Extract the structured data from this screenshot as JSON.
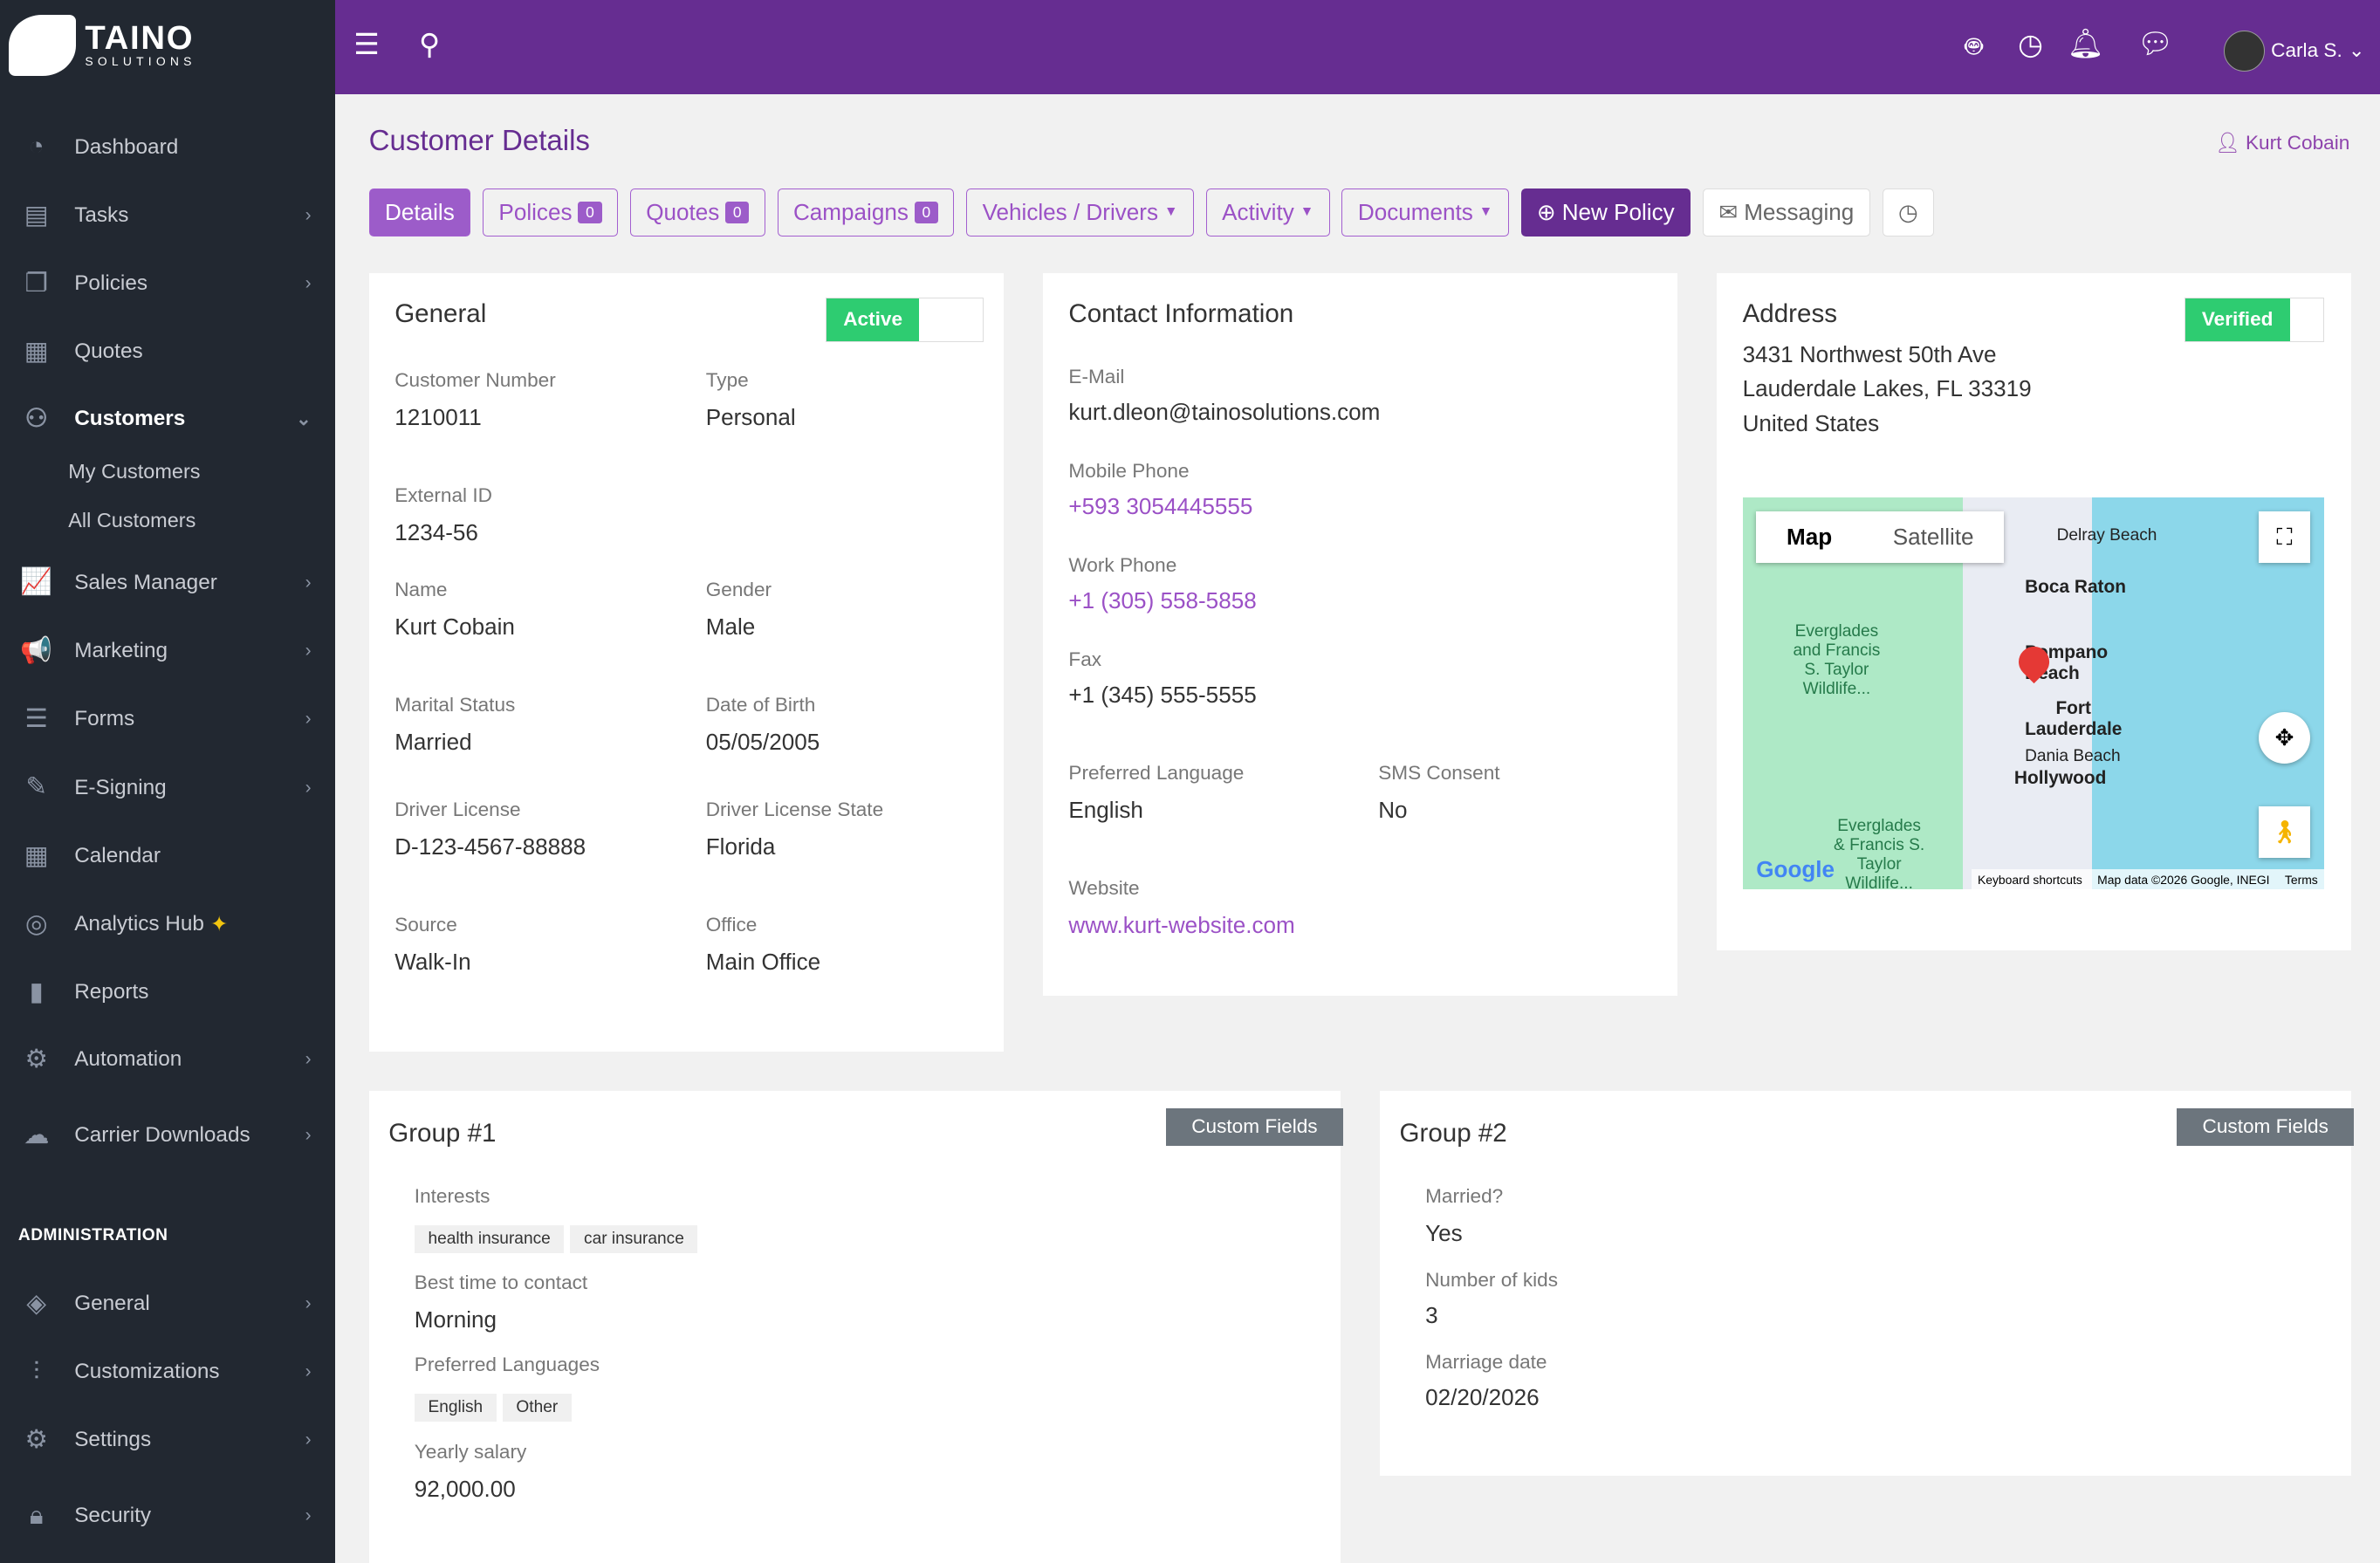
{
  "logo": {
    "name": "TAINO",
    "sub": "SOLUTIONS"
  },
  "sidebar": {
    "items": [
      {
        "label": "Dashboard",
        "icon": "dashboard-icon"
      },
      {
        "label": "Tasks",
        "icon": "clipboard-icon"
      },
      {
        "label": "Policies",
        "icon": "files-icon"
      },
      {
        "label": "Quotes",
        "icon": "calculator-icon"
      },
      {
        "label": "Customers",
        "icon": "users-icon"
      },
      {
        "label": "Sales Manager",
        "icon": "chart-icon"
      },
      {
        "label": "Marketing",
        "icon": "megaphone-icon"
      },
      {
        "label": "Forms",
        "icon": "form-icon"
      },
      {
        "label": "E-Signing",
        "icon": "pen-icon"
      },
      {
        "label": "Calendar",
        "icon": "calendar-icon"
      },
      {
        "label": "Analytics Hub",
        "icon": "analytics-icon"
      },
      {
        "label": "Reports",
        "icon": "bar-chart-icon"
      },
      {
        "label": "Automation",
        "icon": "gears-icon"
      },
      {
        "label": "Carrier Downloads",
        "icon": "cloud-download-icon"
      }
    ],
    "sub_items": [
      "My Customers",
      "All Customers"
    ],
    "admin_heading": "ADMINISTRATION",
    "admin_items": [
      {
        "label": "General"
      },
      {
        "label": "Customizations"
      },
      {
        "label": "Settings"
      },
      {
        "label": "Security"
      }
    ]
  },
  "header": {
    "user": "Carla S."
  },
  "page": {
    "title": "Customer Details",
    "customer": "Kurt Cobain"
  },
  "tabs": {
    "details": "Details",
    "policies": "Polices",
    "policies_count": "0",
    "quotes": "Quotes",
    "quotes_count": "0",
    "campaigns": "Campaigns",
    "campaigns_count": "0",
    "vehicles": "Vehicles / Drivers",
    "activity": "Activity",
    "documents": "Documents",
    "new_policy": "New Policy",
    "messaging": "Messaging"
  },
  "general": {
    "title": "General",
    "status": "Active",
    "customer_number_label": "Customer Number",
    "customer_number": "1210011",
    "type_label": "Type",
    "type": "Personal",
    "external_id_label": "External ID",
    "external_id": "1234-56",
    "name_label": "Name",
    "name": "Kurt Cobain",
    "gender_label": "Gender",
    "gender": "Male",
    "marital_label": "Marital Status",
    "marital": "Married",
    "dob_label": "Date of Birth",
    "dob": "05/05/2005",
    "dl_label": "Driver License",
    "dl": "D-123-4567-88888",
    "dl_state_label": "Driver License State",
    "dl_state": "Florida",
    "source_label": "Source",
    "source": "Walk-In",
    "office_label": "Office",
    "office": "Main Office"
  },
  "contact": {
    "title": "Contact Information",
    "email_label": "E-Mail",
    "email": "kurt.dleon@tainosolutions.com",
    "mobile_label": "Mobile Phone",
    "mobile": "+593 3054445555",
    "work_label": "Work Phone",
    "work": "+1 (305) 558-5858",
    "fax_label": "Fax",
    "fax": "+1 (345) 555-5555",
    "lang_label": "Preferred Language",
    "lang": "English",
    "sms_label": "SMS Consent",
    "sms": "No",
    "website_label": "Website",
    "website": "www.kurt-website.com"
  },
  "address": {
    "title": "Address",
    "status": "Verified",
    "line1": "3431 Northwest 50th Ave",
    "line2": "Lauderdale Lakes, FL 33319",
    "line3": "United States",
    "map": {
      "map_btn": "Map",
      "satellite_btn": "Satellite",
      "places": [
        "Delray Beach",
        "Boca Raton",
        "Pompano Beach",
        "Fort Lauderdale",
        "Dania Beach",
        "Hollywood",
        "Everglades and Francis S. Taylor Wildlife...",
        "Everglades & Francis S. Taylor Wildlife..."
      ],
      "google": "Google",
      "shortcuts": "Keyboard shortcuts",
      "mapdata": "Map data ©2026 Google, INEGI",
      "terms": "Terms"
    }
  },
  "group1": {
    "title": "Group #1",
    "custom_fields": "Custom Fields",
    "interests_label": "Interests",
    "interests": [
      "health insurance",
      "car insurance"
    ],
    "best_time_label": "Best time to contact",
    "best_time": "Morning",
    "langs_label": "Preferred Languages",
    "langs": [
      "English",
      "Other"
    ],
    "salary_label": "Yearly salary",
    "salary": "92,000.00"
  },
  "group2": {
    "title": "Group #2",
    "custom_fields": "Custom Fields",
    "married_label": "Married?",
    "married": "Yes",
    "kids_label": "Number of kids",
    "kids": "3",
    "marriage_date_label": "Marriage date",
    "marriage_date": "02/20/2026"
  }
}
